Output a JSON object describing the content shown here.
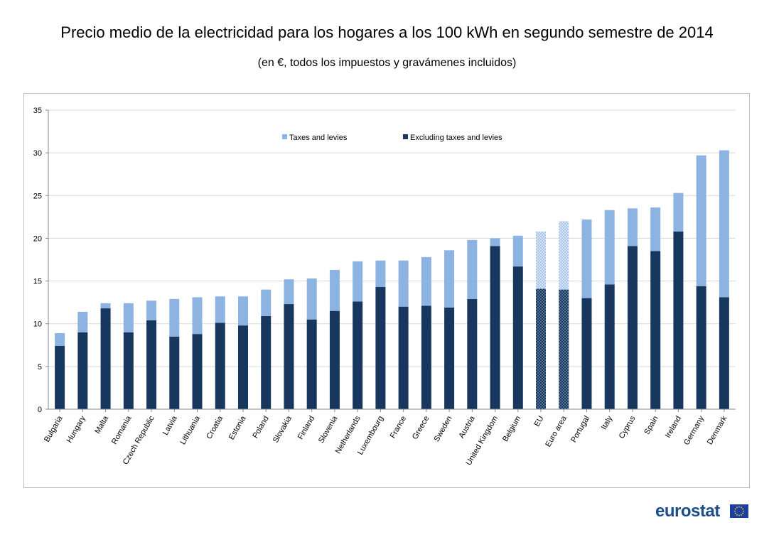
{
  "chart_data": {
    "type": "bar",
    "stacked": true,
    "title": "Precio medio de la electricidad para los hogares a los 100 kWh en segundo semestre de 2014",
    "subtitle": "(en €, todos los impuestos y gravámenes incluidos)",
    "xlabel": "",
    "ylabel": "",
    "ylim": [
      0,
      35
    ],
    "yticks": [
      0,
      5,
      10,
      15,
      20,
      25,
      30,
      35
    ],
    "grid": true,
    "legend_position": "top",
    "categories": [
      "Bulgaria",
      "Hungary",
      "Malta",
      "Romania",
      "Czech Republic",
      "Latvia",
      "Lithuania",
      "Croatia",
      "Estonia",
      "Poland",
      "Slovakia",
      "Finland",
      "Slovenia",
      "Netherlands",
      "Luxembourg",
      "France",
      "Greece",
      "Sweden",
      "Austria",
      "United Kingdom",
      "Belgium",
      "EU",
      "Euro area",
      "Portugal",
      "Italy",
      "Cyprus",
      "Spain",
      "Ireland",
      "Germany",
      "Denmark"
    ],
    "highlighted_categories": [
      "EU",
      "Euro area"
    ],
    "series": [
      {
        "name": "Excluding taxes and levies",
        "color": "#17375e",
        "values": [
          7.4,
          9.0,
          11.8,
          9.0,
          10.4,
          8.5,
          8.8,
          10.1,
          9.8,
          10.9,
          12.3,
          10.5,
          11.5,
          12.6,
          14.3,
          12.0,
          12.1,
          11.9,
          12.9,
          19.1,
          16.7,
          14.1,
          14.0,
          13.0,
          14.6,
          19.1,
          18.5,
          20.8,
          14.4,
          13.1
        ]
      },
      {
        "name": "Taxes and levies",
        "color": "#8db3e2",
        "values": [
          1.5,
          2.4,
          0.6,
          3.4,
          2.3,
          4.4,
          4.3,
          3.1,
          3.4,
          3.1,
          2.9,
          4.8,
          4.8,
          4.7,
          3.1,
          5.4,
          5.7,
          6.7,
          6.9,
          0.9,
          3.6,
          6.7,
          8.0,
          9.2,
          8.7,
          4.4,
          5.1,
          4.5,
          15.3,
          17.2
        ]
      }
    ]
  },
  "logo": {
    "text": "eurostat",
    "flag": "eu-flag-icon"
  }
}
